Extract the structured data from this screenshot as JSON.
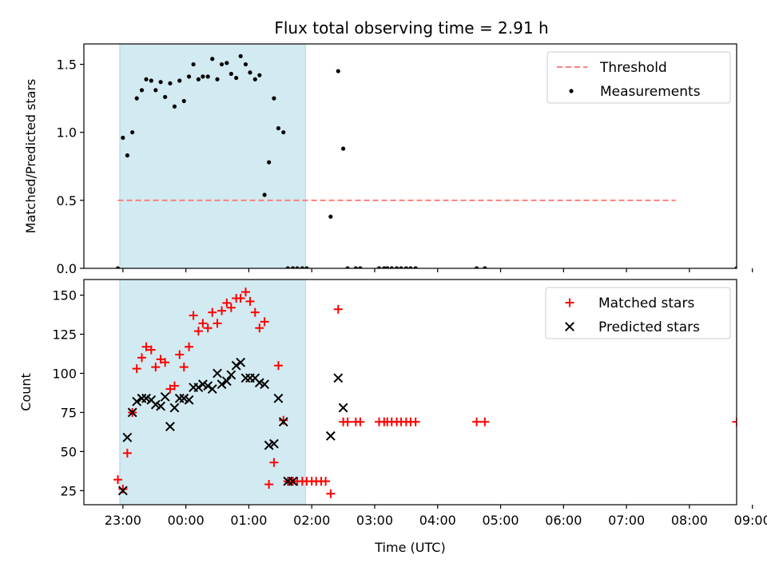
{
  "title": "Flux total observing time = 2.91 h",
  "colors": {
    "shade": "#add8e6",
    "threshold": "#ff7f7f",
    "measurements": "#000000",
    "matched": "#ff0000",
    "predicted": "#000000"
  },
  "chart_data": [
    {
      "type": "scatter",
      "ylabel": "Matched/Predicted stars",
      "ylim": [
        0,
        1.65
      ],
      "yticks": [
        0.0,
        0.5,
        1.0,
        1.5
      ],
      "ytick_labels": [
        "0.0",
        "0.5",
        "1.0",
        "1.5"
      ],
      "xlim_hours": [
        -0.62,
        9.75
      ],
      "shaded_span_hours": [
        -0.05,
        2.9
      ],
      "legend": {
        "position": "upper right",
        "entries": [
          "Threshold",
          "Measurements"
        ]
      },
      "series": [
        {
          "name": "Threshold",
          "kind": "dashed-line",
          "x": [
            -0.08,
            8.78
          ],
          "y": [
            0.5,
            0.5
          ]
        },
        {
          "name": "Measurements",
          "kind": "dot",
          "x": [
            -0.08,
            0.0,
            0.07,
            0.15,
            0.22,
            0.3,
            0.37,
            0.45,
            0.52,
            0.6,
            0.67,
            0.75,
            0.82,
            0.9,
            0.97,
            1.05,
            1.12,
            1.2,
            1.27,
            1.35,
            1.42,
            1.5,
            1.57,
            1.65,
            1.72,
            1.8,
            1.87,
            1.95,
            2.02,
            2.1,
            2.17,
            2.25,
            2.32,
            2.4,
            2.47,
            2.55,
            2.62,
            2.7,
            2.77,
            2.85,
            2.92,
            3.3,
            3.42,
            3.5,
            3.57,
            3.7,
            3.77,
            4.07,
            4.15,
            4.2,
            4.27,
            4.35,
            4.42,
            4.5,
            4.57,
            4.65,
            5.62,
            5.75,
            9.75
          ],
          "y": [
            0.0,
            0.96,
            0.83,
            1.0,
            1.25,
            1.31,
            1.39,
            1.38,
            1.31,
            1.37,
            1.26,
            1.36,
            1.19,
            1.38,
            1.23,
            1.41,
            1.5,
            1.39,
            1.41,
            1.41,
            1.54,
            1.39,
            1.5,
            1.51,
            1.43,
            1.4,
            1.56,
            1.5,
            1.44,
            1.39,
            1.42,
            0.54,
            0.78,
            1.25,
            1.03,
            1.0,
            0.0,
            0.0,
            0.0,
            0.0,
            0.0,
            0.38,
            1.45,
            0.88,
            0.0,
            0.0,
            0.0,
            0.0,
            0.0,
            0.0,
            0.0,
            0.0,
            0.0,
            0.0,
            0.0,
            0.0,
            0.0,
            0.0,
            0.0
          ]
        }
      ]
    },
    {
      "type": "scatter",
      "xlabel": "Time (UTC)",
      "ylabel": "Count",
      "ylim": [
        16,
        160
      ],
      "yticks": [
        25,
        50,
        75,
        100,
        125,
        150
      ],
      "ytick_labels": [
        "25",
        "50",
        "75",
        "100",
        "125",
        "150"
      ],
      "xlim_hours": [
        -0.62,
        9.75
      ],
      "xticks_hours": [
        0,
        1,
        2,
        3,
        4,
        5,
        6,
        7,
        8,
        9,
        10
      ],
      "xtick_labels": [
        "23:00",
        "00:00",
        "01:00",
        "02:00",
        "03:00",
        "04:00",
        "05:00",
        "06:00",
        "07:00",
        "08:00",
        "09:00"
      ],
      "shaded_span_hours": [
        -0.05,
        2.9
      ],
      "legend": {
        "position": "upper right",
        "entries": [
          "Matched stars",
          "Predicted stars"
        ]
      },
      "series": [
        {
          "name": "Matched stars",
          "kind": "plus",
          "x": [
            -0.08,
            0.0,
            0.07,
            0.15,
            0.22,
            0.3,
            0.37,
            0.45,
            0.52,
            0.6,
            0.67,
            0.75,
            0.82,
            0.9,
            0.97,
            1.05,
            1.12,
            1.2,
            1.27,
            1.35,
            1.42,
            1.5,
            1.57,
            1.65,
            1.72,
            1.8,
            1.87,
            1.95,
            2.02,
            2.1,
            2.17,
            2.25,
            2.32,
            2.4,
            2.47,
            2.55,
            2.62,
            2.7,
            2.77,
            2.85,
            2.92,
            3.0,
            3.07,
            3.15,
            3.22,
            3.3,
            3.42,
            3.5,
            3.57,
            3.7,
            3.77,
            4.07,
            4.15,
            4.2,
            4.27,
            4.35,
            4.42,
            4.5,
            4.57,
            4.65,
            5.62,
            5.75,
            9.75
          ],
          "y": [
            32,
            26,
            49,
            75,
            103,
            110,
            117,
            115,
            104,
            109,
            107,
            90,
            92,
            112,
            104,
            117,
            137,
            127,
            132,
            129,
            139,
            132,
            140,
            145,
            142,
            148,
            148,
            152,
            146,
            139,
            129,
            133,
            29,
            43,
            105,
            70,
            31,
            31,
            31,
            31,
            31,
            31,
            31,
            31,
            31,
            23,
            141,
            69,
            69,
            69,
            69,
            69,
            69,
            69,
            69,
            69,
            69,
            69,
            69,
            69,
            69,
            69,
            69
          ]
        },
        {
          "name": "Predicted stars",
          "kind": "x",
          "x": [
            0.0,
            0.07,
            0.15,
            0.22,
            0.3,
            0.37,
            0.45,
            0.52,
            0.6,
            0.67,
            0.75,
            0.82,
            0.9,
            0.97,
            1.05,
            1.12,
            1.2,
            1.27,
            1.35,
            1.42,
            1.5,
            1.57,
            1.65,
            1.72,
            1.8,
            1.87,
            1.95,
            2.02,
            2.1,
            2.17,
            2.25,
            2.32,
            2.4,
            2.47,
            2.55,
            2.62,
            2.7,
            3.3,
            3.42,
            3.5
          ],
          "y": [
            25,
            59,
            75,
            82,
            84,
            84,
            83,
            80,
            79,
            85,
            66,
            78,
            84,
            84,
            83,
            91,
            91,
            93,
            92,
            90,
            100,
            93,
            95,
            99,
            105,
            107,
            97,
            97,
            97,
            94,
            93,
            54,
            55,
            84,
            69,
            31,
            31,
            60,
            97,
            78
          ]
        }
      ]
    }
  ]
}
